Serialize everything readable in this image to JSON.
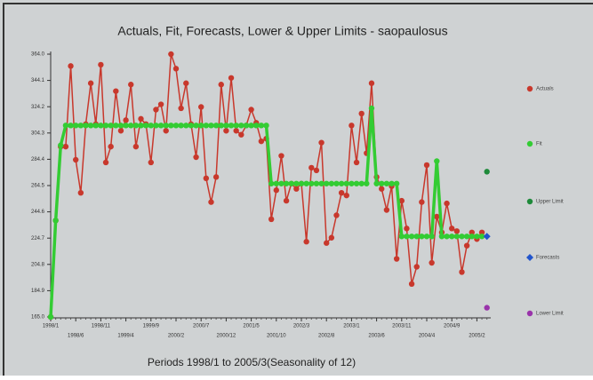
{
  "chart_data": {
    "type": "line",
    "title": "Actuals, Fit, Forecasts, Lower & Upper Limits - saopaulosus",
    "x_label": "Periods 1998/1 to 2005/3(Seasonality of 12)",
    "categories": [
      "1998/1",
      null,
      null,
      null,
      null,
      "1998/6",
      null,
      null,
      null,
      null,
      "1998/11",
      null,
      null,
      null,
      null,
      "1999/4",
      null,
      null,
      null,
      null,
      "1999/9",
      null,
      null,
      null,
      null,
      "2000/2",
      null,
      null,
      null,
      null,
      "2000/7",
      null,
      null,
      null,
      null,
      "2000/12",
      null,
      null,
      null,
      null,
      "2001/5",
      null,
      null,
      null,
      null,
      "2001/10",
      null,
      null,
      null,
      null,
      "2002/3",
      null,
      null,
      null,
      null,
      "2002/8",
      null,
      null,
      null,
      null,
      "2003/1",
      null,
      null,
      null,
      null,
      "2003/6",
      null,
      null,
      null,
      null,
      "2003/11",
      null,
      null,
      null,
      null,
      "2004/4",
      null,
      null,
      null,
      null,
      "2004/9",
      null,
      null,
      null,
      null,
      "2005/2",
      null,
      null
    ],
    "ylim": [
      165,
      364
    ],
    "yticks": [
      {
        "value": 165,
        "label": "165.0"
      },
      184.9,
      204.8,
      224.7,
      244.6,
      264.5,
      284.4,
      304.3,
      324.2,
      344.1,
      {
        "value": 364,
        "label": "364.0"
      }
    ],
    "series": [
      {
        "name": "Actuals",
        "color": "#c8382c",
        "values": [
          165,
          238,
          294,
          294,
          355,
          284,
          259,
          311,
          342,
          311,
          356,
          282,
          294,
          336,
          306,
          314,
          341,
          294,
          315,
          311,
          282,
          322,
          326,
          306,
          364,
          353,
          323,
          342,
          311,
          286,
          324,
          270,
          252,
          271,
          341,
          306,
          346,
          306,
          303,
          310,
          322,
          312,
          298,
          300,
          239,
          261,
          287,
          253,
          266,
          262,
          266,
          222,
          278,
          276,
          297,
          221,
          225,
          242,
          259,
          257,
          310,
          282,
          319,
          289,
          342,
          271,
          262,
          246,
          264,
          209,
          253,
          232,
          190,
          203,
          252,
          280,
          206,
          241,
          229,
          251,
          232,
          230,
          199,
          219,
          229,
          224,
          229,
          null
        ]
      },
      {
        "name": "Fit",
        "color": "#33cc33",
        "values": [
          165,
          238,
          295,
          310,
          310,
          310,
          310,
          310,
          310,
          310,
          310,
          310,
          310,
          310,
          310,
          310,
          310,
          310,
          310,
          310,
          310,
          310,
          310,
          310,
          310,
          310,
          310,
          310,
          310,
          310,
          310,
          310,
          310,
          310,
          310,
          310,
          310,
          310,
          310,
          310,
          310,
          310,
          310,
          310,
          266,
          266,
          266,
          266,
          266,
          266,
          266,
          266,
          266,
          266,
          266,
          266,
          266,
          266,
          266,
          266,
          266,
          266,
          266,
          266,
          323,
          266,
          266,
          266,
          266,
          266,
          226,
          226,
          226,
          226,
          226,
          226,
          226,
          283,
          226,
          226,
          226,
          226,
          226,
          226,
          226,
          226,
          226,
          null
        ]
      },
      {
        "name": "Upper Limit",
        "color": "#1e8a3a",
        "values": [
          null,
          null,
          null,
          null,
          null,
          null,
          null,
          null,
          null,
          null,
          null,
          null,
          null,
          null,
          null,
          null,
          null,
          null,
          null,
          null,
          null,
          null,
          null,
          null,
          null,
          null,
          null,
          null,
          null,
          null,
          null,
          null,
          null,
          null,
          null,
          null,
          null,
          null,
          null,
          null,
          null,
          null,
          null,
          null,
          null,
          null,
          null,
          null,
          null,
          null,
          null,
          null,
          null,
          null,
          null,
          null,
          null,
          null,
          null,
          null,
          null,
          null,
          null,
          null,
          null,
          null,
          null,
          null,
          null,
          null,
          null,
          null,
          null,
          null,
          null,
          null,
          null,
          null,
          null,
          null,
          null,
          null,
          null,
          null,
          null,
          null,
          null,
          275
        ]
      },
      {
        "name": "Forecasts",
        "color": "#2255cc",
        "marker": "diamond",
        "values": [
          null,
          null,
          null,
          null,
          null,
          null,
          null,
          null,
          null,
          null,
          null,
          null,
          null,
          null,
          null,
          null,
          null,
          null,
          null,
          null,
          null,
          null,
          null,
          null,
          null,
          null,
          null,
          null,
          null,
          null,
          null,
          null,
          null,
          null,
          null,
          null,
          null,
          null,
          null,
          null,
          null,
          null,
          null,
          null,
          null,
          null,
          null,
          null,
          null,
          null,
          null,
          null,
          null,
          null,
          null,
          null,
          null,
          null,
          null,
          null,
          null,
          null,
          null,
          null,
          null,
          null,
          null,
          null,
          null,
          null,
          null,
          null,
          null,
          null,
          null,
          null,
          null,
          null,
          null,
          null,
          null,
          null,
          null,
          null,
          null,
          null,
          null,
          226
        ]
      },
      {
        "name": "Lower Limit",
        "color": "#9933aa",
        "values": [
          null,
          null,
          null,
          null,
          null,
          null,
          null,
          null,
          null,
          null,
          null,
          null,
          null,
          null,
          null,
          null,
          null,
          null,
          null,
          null,
          null,
          null,
          null,
          null,
          null,
          null,
          null,
          null,
          null,
          null,
          null,
          null,
          null,
          null,
          null,
          null,
          null,
          null,
          null,
          null,
          null,
          null,
          null,
          null,
          null,
          null,
          null,
          null,
          null,
          null,
          null,
          null,
          null,
          null,
          null,
          null,
          null,
          null,
          null,
          null,
          null,
          null,
          null,
          null,
          null,
          null,
          null,
          null,
          null,
          null,
          null,
          null,
          null,
          null,
          null,
          null,
          null,
          null,
          null,
          null,
          null,
          null,
          null,
          null,
          null,
          null,
          null,
          172
        ]
      }
    ]
  }
}
